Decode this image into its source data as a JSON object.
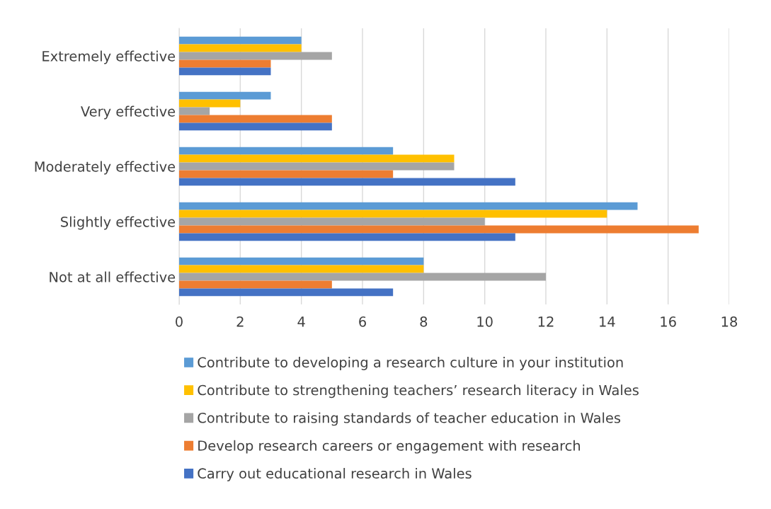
{
  "chart_data": {
    "type": "bar",
    "orientation": "horizontal",
    "categories": [
      "Extremely effective",
      "Very effective",
      "Moderately effective",
      "Slightly effective",
      "Not at all effective"
    ],
    "series": [
      {
        "name": "Contribute to developing a research culture in your institution",
        "color": "#5b9bd5",
        "values": [
          4,
          3,
          7,
          15,
          8
        ]
      },
      {
        "name": "Contribute to strengthening teachers’ research literacy in Wales",
        "color": "#ffc000",
        "values": [
          4,
          2,
          9,
          14,
          8
        ]
      },
      {
        "name": "Contribute to raising standards of teacher education in Wales",
        "color": "#a5a5a5",
        "values": [
          5,
          1,
          9,
          10,
          12
        ]
      },
      {
        "name": "Develop research careers or engagement with research",
        "color": "#ed7d31",
        "values": [
          3,
          5,
          7,
          17,
          5
        ]
      },
      {
        "name": "Carry out educational research in Wales",
        "color": "#4472c4",
        "values": [
          3,
          5,
          11,
          11,
          7
        ]
      }
    ],
    "xlim": [
      0,
      18
    ],
    "xticks": [
      0,
      2,
      4,
      6,
      8,
      10,
      12,
      14,
      16,
      18
    ],
    "grid": "x",
    "legend": "bottom"
  }
}
